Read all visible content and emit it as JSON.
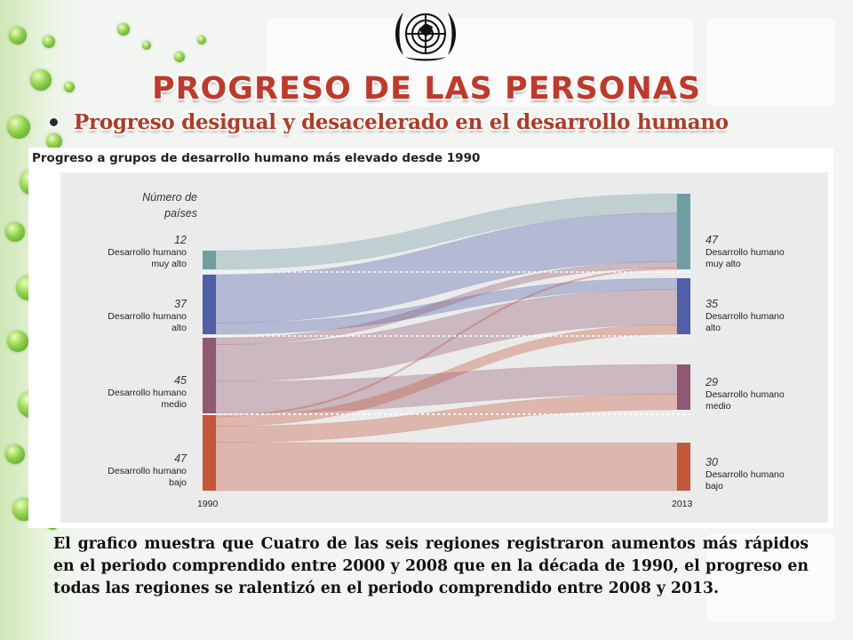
{
  "slide": {
    "title": "PROGRESO DE LAS PERSONAS",
    "bullet": "Progreso desigual y desacelerado en el desarrollo humano",
    "caption": "El grafico muestra que Cuatro de las seis regiones registraron aumentos más rápidos en el periodo comprendido entre 2000 y 2008 que en la década de 1990, el progreso en todas las regiones se ralentizó en el periodo comprendido entre 2008 y 2013.",
    "emblem_icon": "un-emblem-icon"
  },
  "chart_data": {
    "type": "sankey",
    "title": "Progreso a grupos de desarrollo humano más elevado desde 1990",
    "left_header": "Número de países",
    "x_labels": [
      "1990",
      "2013"
    ],
    "nodes_1990": [
      {
        "id": "muy_alto",
        "value": "12",
        "label": "Desarrollo humano muy alto",
        "color": "#6f9ea3"
      },
      {
        "id": "alto",
        "value": "37",
        "label": "Desarrollo humano alto",
        "color": "#4f5fa8"
      },
      {
        "id": "medio",
        "value": "45",
        "label": "Desarrollo humano medio",
        "color": "#8f5873"
      },
      {
        "id": "bajo",
        "value": "47",
        "label": "Desarrollo humano bajo",
        "color": "#c2573a"
      }
    ],
    "nodes_2013": [
      {
        "id": "muy_alto",
        "value": "47",
        "label": "Desarrollo humano muy alto",
        "color": "#6f9ea3"
      },
      {
        "id": "alto",
        "value": "35",
        "label": "Desarrollo humano alto",
        "color": "#4f5fa8"
      },
      {
        "id": "medio",
        "value": "29",
        "label": "Desarrollo humano medio",
        "color": "#8f5873"
      },
      {
        "id": "bajo",
        "value": "30",
        "label": "Desarrollo humano bajo",
        "color": "#c2573a"
      }
    ],
    "flows": [
      {
        "from": "muy_alto",
        "to": "muy_alto",
        "value": 12
      },
      {
        "from": "alto",
        "to": "muy_alto",
        "value": 30
      },
      {
        "from": "alto",
        "to": "alto",
        "value": 7
      },
      {
        "from": "medio",
        "to": "muy_alto",
        "value": 4
      },
      {
        "from": "medio",
        "to": "alto",
        "value": 22
      },
      {
        "from": "medio",
        "to": "medio",
        "value": 19
      },
      {
        "from": "bajo",
        "to": "muy_alto",
        "value": 1
      },
      {
        "from": "bajo",
        "to": "alto",
        "value": 6
      },
      {
        "from": "bajo",
        "to": "medio",
        "value": 10
      },
      {
        "from": "bajo",
        "to": "bajo",
        "value": 30
      }
    ]
  }
}
